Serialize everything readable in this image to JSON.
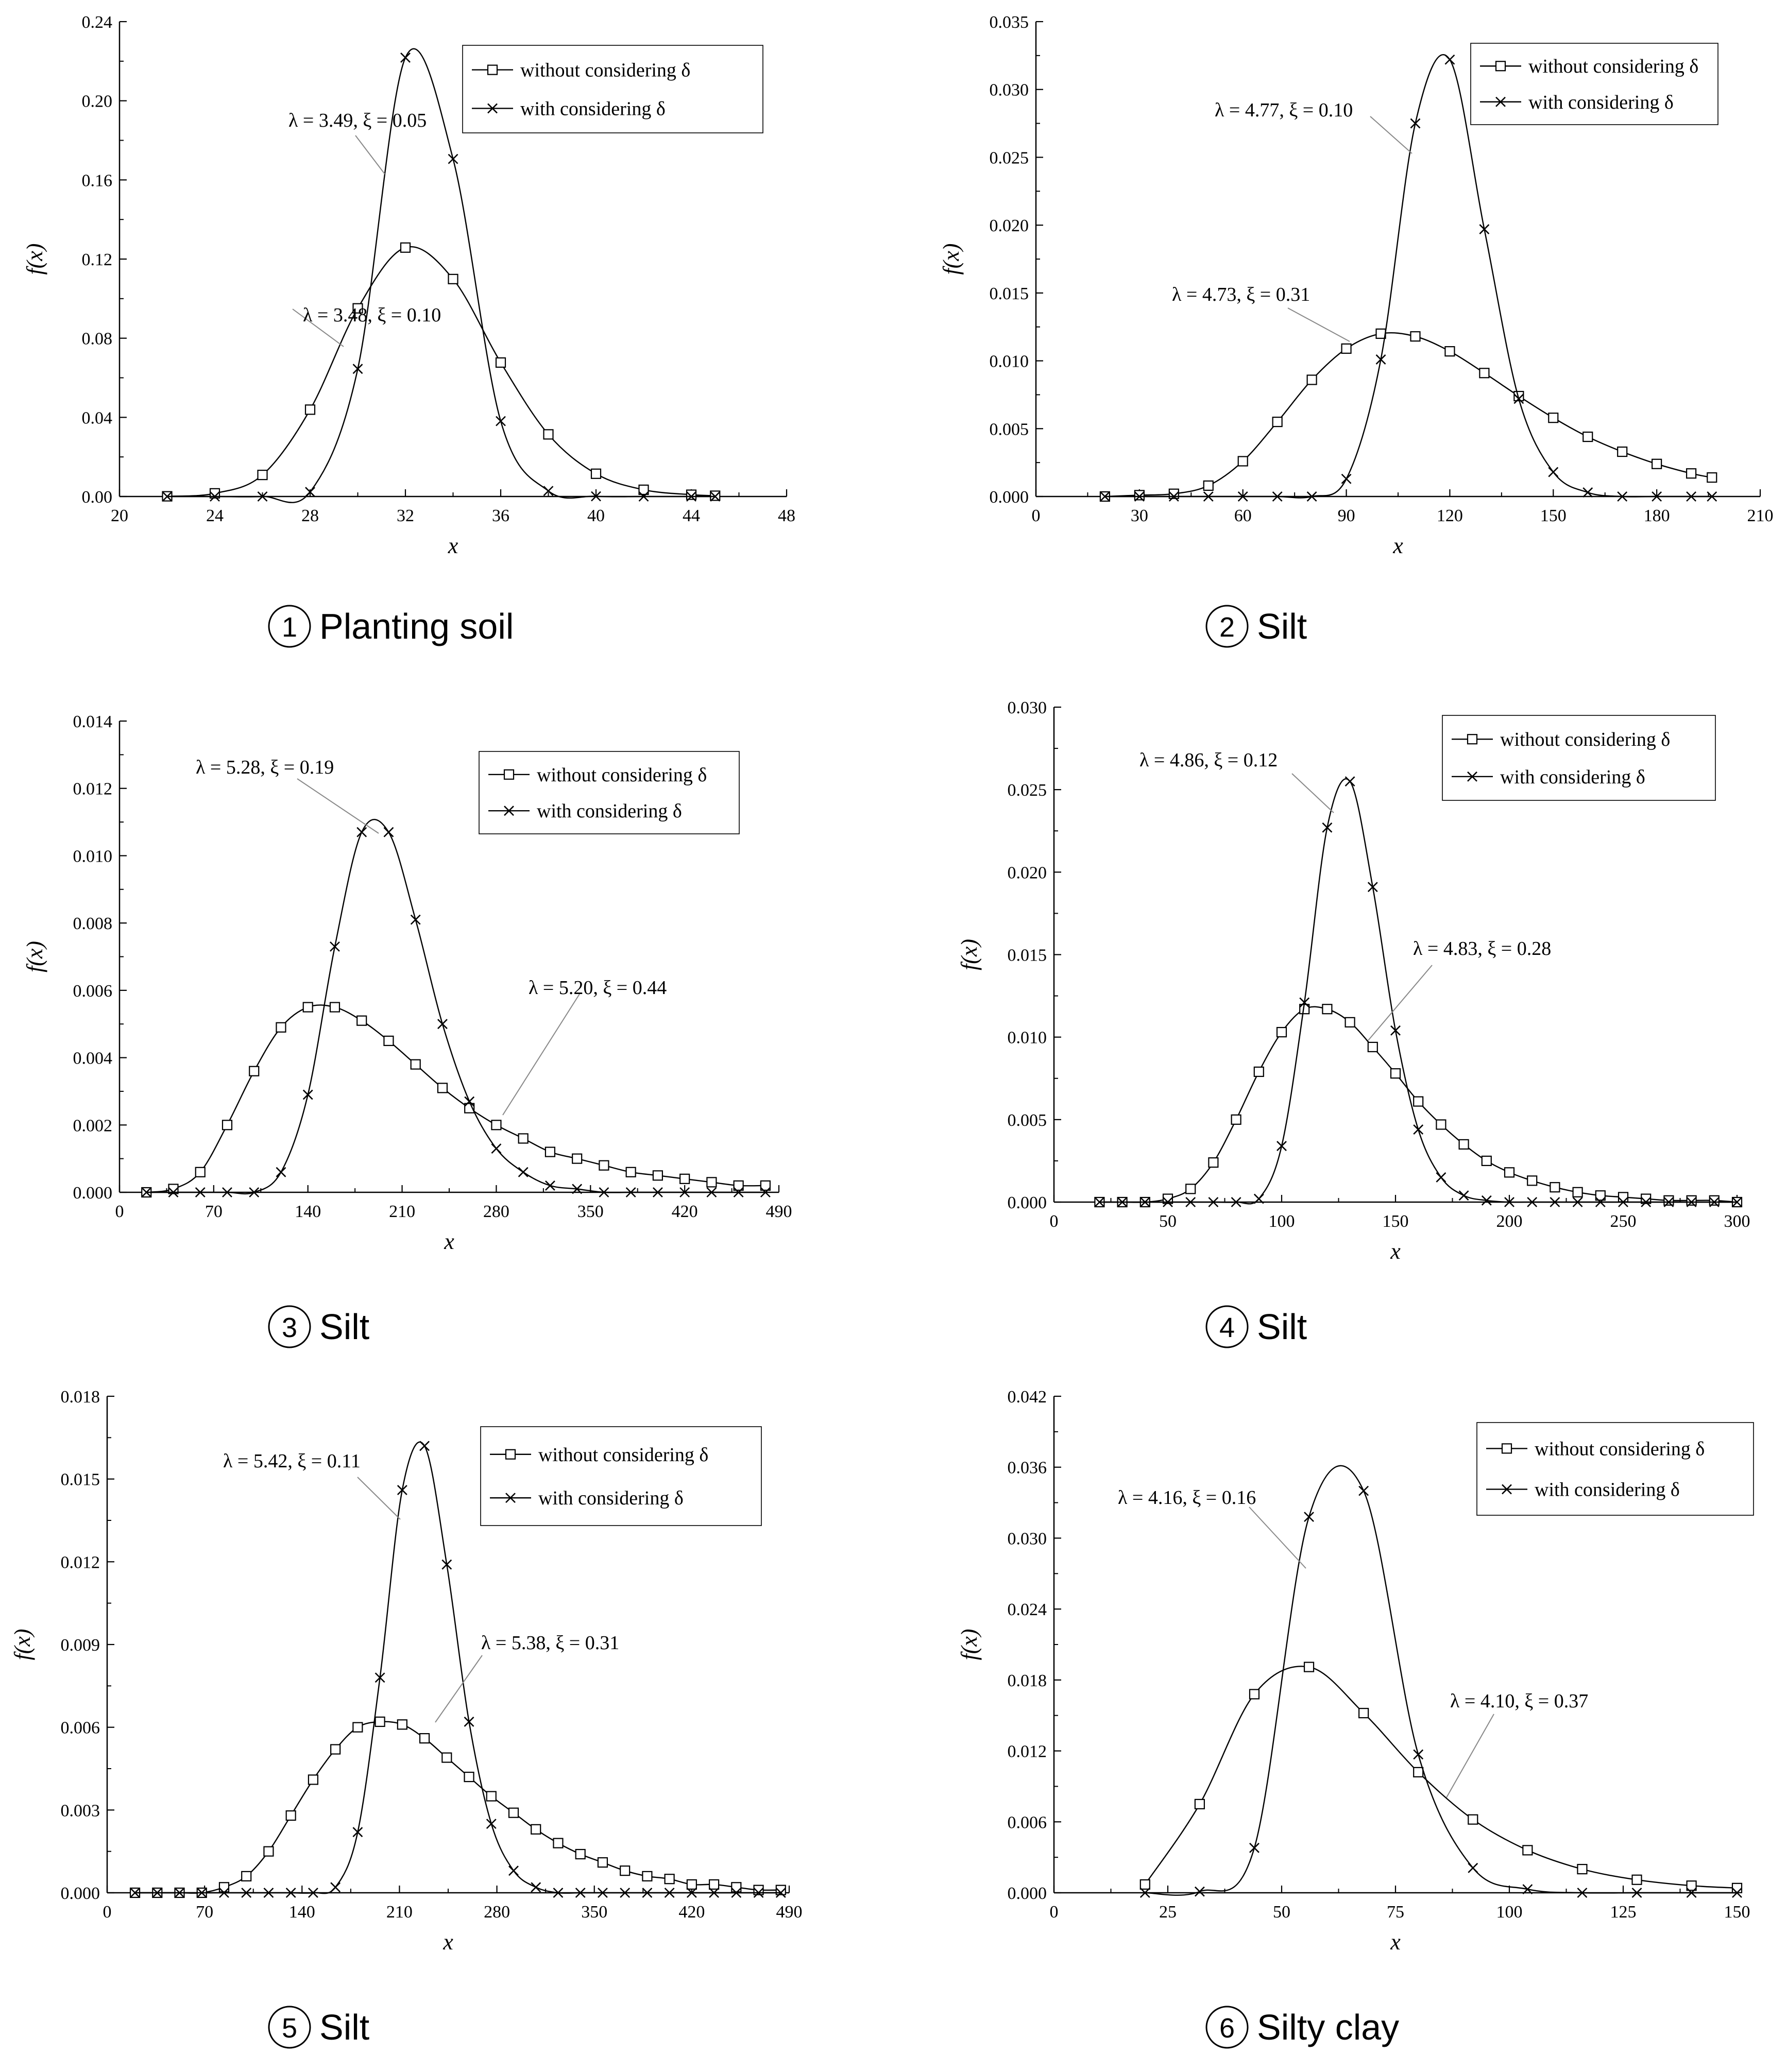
{
  "chart_data": [
    {
      "type": "line",
      "caption": "Planting soil",
      "caption_number": "1",
      "xlabel": "x",
      "ylabel": "f(x)",
      "xlim": [
        20,
        48
      ],
      "ylim": [
        0,
        0.24
      ],
      "xticks": [
        "20",
        "24",
        "28",
        "32",
        "36",
        "40",
        "44",
        "48"
      ],
      "yticks": [
        "0.00",
        "0.04",
        "0.08",
        "0.12",
        "0.16",
        "0.20",
        "0.24"
      ],
      "legend": [
        "without considering δ",
        "with considering δ"
      ],
      "legend_position": "top-right",
      "series": [
        {
          "name": "without considering δ",
          "marker": "square",
          "lambda": 3.48,
          "xi": 0.1,
          "annotation": "λ = 3.48, ξ = 0.10",
          "x": [
            22,
            24,
            26,
            28,
            30,
            32,
            34,
            36,
            38,
            40,
            42,
            44,
            45
          ],
          "values": [
            0.0001,
            0.0016,
            0.0109,
            0.0439,
            0.0951,
            0.1258,
            0.1099,
            0.0677,
            0.0314,
            0.0115,
            0.0034,
            0.0009,
            0.0004
          ]
        },
        {
          "name": "with considering δ",
          "marker": "x",
          "lambda": 3.49,
          "xi": 0.05,
          "annotation": "λ = 3.49, ξ = 0.05",
          "x": [
            22,
            24,
            26,
            28,
            30,
            32,
            34,
            36,
            38,
            40,
            42,
            44,
            45
          ],
          "values": [
            0.0,
            0.0,
            0.0,
            0.0023,
            0.0645,
            0.2218,
            0.1706,
            0.0381,
            0.0028,
            0.0001,
            0.0,
            0.0,
            0.0
          ]
        }
      ]
    },
    {
      "type": "line",
      "caption": "Silt",
      "caption_number": "2",
      "xlabel": "x",
      "ylabel": "f(x)",
      "xlim": [
        0,
        210
      ],
      "ylim": [
        0,
        0.035
      ],
      "xticks": [
        "0",
        "30",
        "60",
        "90",
        "120",
        "150",
        "180",
        "210"
      ],
      "yticks": [
        "0.000",
        "0.005",
        "0.010",
        "0.015",
        "0.020",
        "0.025",
        "0.030",
        "0.035"
      ],
      "legend": [
        "without considering δ",
        "with considering δ"
      ],
      "legend_position": "top-right",
      "series": [
        {
          "name": "without considering δ",
          "marker": "square",
          "lambda": 4.73,
          "xi": 0.31,
          "annotation": "λ = 4.73, ξ = 0.31",
          "x": [
            20,
            30,
            40,
            50,
            60,
            70,
            80,
            90,
            100,
            110,
            120,
            130,
            140,
            150,
            160,
            170,
            180,
            190,
            196
          ],
          "values": [
            0.0,
            0.0001,
            0.0002,
            0.0008,
            0.0026,
            0.0055,
            0.0086,
            0.0109,
            0.012,
            0.0118,
            0.0107,
            0.0091,
            0.0074,
            0.0058,
            0.0044,
            0.0033,
            0.0024,
            0.0017,
            0.0014
          ]
        },
        {
          "name": "with considering δ",
          "marker": "x",
          "lambda": 4.77,
          "xi": 0.1,
          "annotation": "λ = 4.77, ξ = 0.10",
          "x": [
            20,
            30,
            40,
            50,
            60,
            70,
            80,
            90,
            100,
            110,
            120,
            130,
            140,
            150,
            160,
            170,
            180,
            190,
            196
          ],
          "values": [
            0.0,
            0.0,
            0.0,
            0.0,
            0.0,
            0.0,
            0.0,
            0.0013,
            0.0101,
            0.0275,
            0.0322,
            0.0197,
            0.0072,
            0.0018,
            0.0003,
            0.0,
            0.0,
            0.0,
            0.0
          ]
        }
      ]
    },
    {
      "type": "line",
      "caption": "Silt",
      "caption_number": "3",
      "xlabel": "x",
      "ylabel": "f(x)",
      "xlim": [
        0,
        490
      ],
      "ylim": [
        0,
        0.014
      ],
      "xticks": [
        "0",
        "70",
        "140",
        "210",
        "280",
        "350",
        "420",
        "490"
      ],
      "yticks": [
        "0.000",
        "0.002",
        "0.004",
        "0.006",
        "0.008",
        "0.010",
        "0.012",
        "0.014"
      ],
      "legend": [
        "without considering δ",
        "with considering δ"
      ],
      "legend_position": "top-right",
      "series": [
        {
          "name": "without considering δ",
          "marker": "square",
          "lambda": 5.2,
          "xi": 0.44,
          "annotation": "λ = 5.20, ξ = 0.44",
          "x": [
            20,
            40,
            60,
            80,
            100,
            120,
            140,
            160,
            180,
            200,
            220,
            240,
            260,
            280,
            300,
            320,
            340,
            360,
            380,
            400,
            420,
            440,
            460,
            480
          ],
          "values": [
            0.0,
            0.0001,
            0.0006,
            0.002,
            0.0036,
            0.0049,
            0.0055,
            0.0055,
            0.0051,
            0.0045,
            0.0038,
            0.0031,
            0.0025,
            0.002,
            0.0016,
            0.0012,
            0.001,
            0.0008,
            0.0006,
            0.0005,
            0.0004,
            0.0003,
            0.0002,
            0.0002
          ]
        },
        {
          "name": "with considering δ",
          "marker": "x",
          "lambda": 5.28,
          "xi": 0.19,
          "annotation": "λ = 5.28, ξ = 0.19",
          "x": [
            20,
            40,
            60,
            80,
            100,
            120,
            140,
            160,
            180,
            200,
            220,
            240,
            260,
            280,
            300,
            320,
            340,
            360,
            380,
            400,
            420,
            440,
            460,
            480
          ],
          "values": [
            0.0,
            0.0,
            0.0,
            0.0,
            0.0,
            0.0006,
            0.0029,
            0.0073,
            0.0107,
            0.0107,
            0.0081,
            0.005,
            0.0027,
            0.0013,
            0.0006,
            0.0002,
            0.0001,
            0.0,
            0.0,
            0.0,
            0.0,
            0.0,
            0.0,
            0.0
          ]
        }
      ]
    },
    {
      "type": "line",
      "caption": "Silt",
      "caption_number": "4",
      "xlabel": "x",
      "ylabel": "f(x)",
      "xlim": [
        0,
        300
      ],
      "ylim": [
        0,
        0.03
      ],
      "xticks": [
        "0",
        "50",
        "100",
        "150",
        "200",
        "250",
        "300"
      ],
      "yticks": [
        "0.000",
        "0.005",
        "0.010",
        "0.015",
        "0.020",
        "0.025",
        "0.030"
      ],
      "legend": [
        "without considering δ",
        "with considering δ"
      ],
      "legend_position": "top-right",
      "series": [
        {
          "name": "without considering δ",
          "marker": "square",
          "lambda": 4.83,
          "xi": 0.28,
          "annotation": "λ = 4.83, ξ = 0.28",
          "x": [
            20,
            30,
            40,
            50,
            60,
            70,
            80,
            90,
            100,
            110,
            120,
            130,
            140,
            150,
            160,
            170,
            180,
            190,
            200,
            210,
            220,
            230,
            240,
            250,
            260,
            270,
            280,
            290,
            300
          ],
          "values": [
            0.0,
            0.0,
            0.0,
            0.0002,
            0.0008,
            0.0024,
            0.005,
            0.0079,
            0.0103,
            0.0117,
            0.0117,
            0.0109,
            0.0094,
            0.0078,
            0.0061,
            0.0047,
            0.0035,
            0.0025,
            0.0018,
            0.0013,
            0.0009,
            0.0006,
            0.0004,
            0.0003,
            0.0002,
            0.0001,
            0.0001,
            0.0001,
            0.0
          ]
        },
        {
          "name": "with considering δ",
          "marker": "x",
          "lambda": 4.86,
          "xi": 0.12,
          "annotation": "λ = 4.86, ξ = 0.12",
          "x": [
            20,
            30,
            40,
            50,
            60,
            70,
            80,
            90,
            100,
            110,
            120,
            130,
            140,
            150,
            160,
            170,
            180,
            190,
            200,
            210,
            220,
            230,
            240,
            250,
            260,
            270,
            280,
            290,
            300
          ],
          "values": [
            0.0,
            0.0,
            0.0,
            0.0,
            0.0,
            0.0,
            0.0,
            0.0002,
            0.0034,
            0.0121,
            0.0227,
            0.0255,
            0.0191,
            0.0104,
            0.0044,
            0.0015,
            0.0004,
            0.0001,
            0.0,
            0.0,
            0.0,
            0.0,
            0.0,
            0.0,
            0.0,
            0.0,
            0.0,
            0.0,
            0.0
          ]
        }
      ]
    },
    {
      "type": "line",
      "caption": "Silt",
      "caption_number": "5",
      "xlabel": "x",
      "ylabel": "f(x)",
      "xlim": [
        0,
        490
      ],
      "ylim": [
        0,
        0.018
      ],
      "xticks": [
        "0",
        "70",
        "140",
        "210",
        "280",
        "350",
        "420",
        "490"
      ],
      "yticks": [
        "0.000",
        "0.003",
        "0.006",
        "0.009",
        "0.012",
        "0.015",
        "0.018"
      ],
      "legend": [
        "without considering δ",
        "with considering δ"
      ],
      "legend_position": "top-right",
      "series": [
        {
          "name": "without considering δ",
          "marker": "square",
          "lambda": 5.38,
          "xi": 0.31,
          "annotation": "λ = 5.38, ξ = 0.31",
          "x": [
            20,
            36,
            52,
            68,
            84,
            100,
            116,
            132,
            148,
            164,
            180,
            196,
            212,
            228,
            244,
            260,
            276,
            292,
            308,
            324,
            340,
            356,
            372,
            388,
            404,
            420,
            436,
            452,
            468,
            484
          ],
          "values": [
            0.0,
            0.0,
            0.0,
            0.0,
            0.0002,
            0.0006,
            0.0015,
            0.0028,
            0.0041,
            0.0052,
            0.006,
            0.0062,
            0.0061,
            0.0056,
            0.0049,
            0.0042,
            0.0035,
            0.0029,
            0.0023,
            0.0018,
            0.0014,
            0.0011,
            0.0008,
            0.0006,
            0.0005,
            0.0003,
            0.0003,
            0.0002,
            0.0001,
            0.0001
          ]
        },
        {
          "name": "with considering δ",
          "marker": "x",
          "lambda": 5.42,
          "xi": 0.11,
          "annotation": "λ = 5.42, ξ = 0.11",
          "x": [
            20,
            36,
            52,
            68,
            84,
            100,
            116,
            132,
            148,
            164,
            180,
            196,
            212,
            228,
            244,
            260,
            276,
            292,
            308,
            324,
            340,
            356,
            372,
            388,
            404,
            420,
            436,
            452,
            468,
            484
          ],
          "values": [
            0.0,
            0.0,
            0.0,
            0.0,
            0.0,
            0.0,
            0.0,
            0.0,
            0.0,
            0.0002,
            0.0022,
            0.0078,
            0.0146,
            0.0162,
            0.0119,
            0.0062,
            0.0025,
            0.0008,
            0.0002,
            0.0,
            0.0,
            0.0,
            0.0,
            0.0,
            0.0,
            0.0,
            0.0,
            0.0,
            0.0,
            0.0
          ]
        }
      ]
    },
    {
      "type": "line",
      "caption": "Silty clay",
      "caption_number": "6",
      "xlabel": "x",
      "ylabel": "f(x)",
      "xlim": [
        0,
        150
      ],
      "ylim": [
        0,
        0.042
      ],
      "xticks": [
        "0",
        "25",
        "50",
        "75",
        "100",
        "125",
        "150"
      ],
      "yticks": [
        "0.000",
        "0.006",
        "0.012",
        "0.018",
        "0.024",
        "0.030",
        "0.036",
        "0.042"
      ],
      "legend": [
        "without considering δ",
        "with considering δ"
      ],
      "legend_position": "top-right",
      "series": [
        {
          "name": "without considering δ",
          "marker": "square",
          "lambda": 4.1,
          "xi": 0.37,
          "annotation": "λ = 4.10, ξ = 0.37",
          "x": [
            20,
            32,
            44,
            56,
            68,
            80,
            92,
            104,
            116,
            128,
            140,
            150
          ],
          "values": [
            0.0007,
            0.0075,
            0.0168,
            0.0191,
            0.0152,
            0.0102,
            0.0062,
            0.0036,
            0.002,
            0.0011,
            0.0006,
            0.0004
          ]
        },
        {
          "name": "with considering δ",
          "marker": "x",
          "lambda": 4.16,
          "xi": 0.16,
          "annotation": "λ = 4.16, ξ = 0.16",
          "x": [
            20,
            32,
            44,
            56,
            68,
            80,
            92,
            104,
            116,
            128,
            140,
            150
          ],
          "values": [
            0.0,
            0.0001,
            0.0038,
            0.0318,
            0.034,
            0.0117,
            0.0021,
            0.0003,
            0.0,
            0.0,
            0.0,
            0.0
          ]
        }
      ]
    }
  ]
}
